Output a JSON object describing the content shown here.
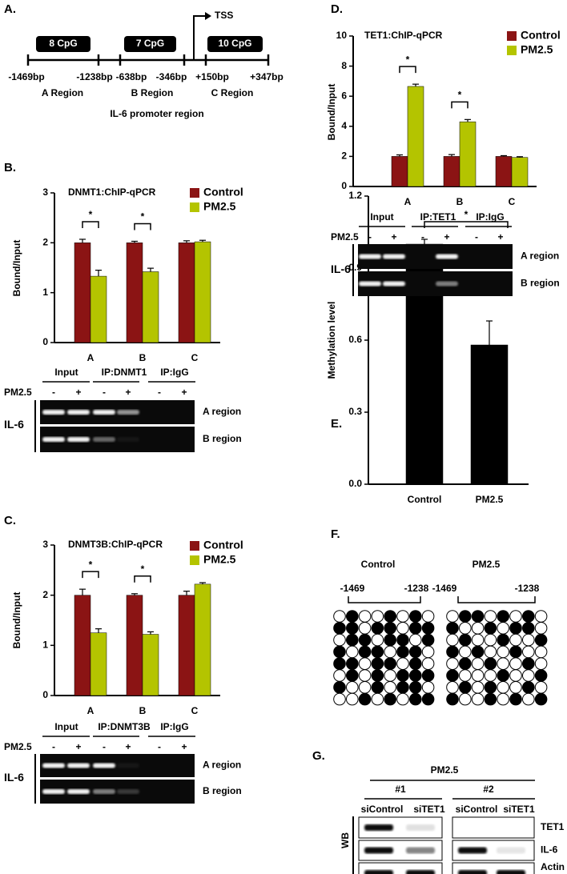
{
  "panel_labels": [
    "A.",
    "B.",
    "C.",
    "D.",
    "E.",
    "F.",
    "G."
  ],
  "panel_a": {
    "cpg_islands": [
      "8 CpG",
      "7 CpG",
      "10 CpG"
    ],
    "tss": "TSS",
    "positions": [
      "-1469bp",
      "-1238bp",
      "-638bp",
      "-346bp",
      "+150bp",
      "+347bp"
    ],
    "regions": [
      "A Region",
      "B Region",
      "C Region"
    ],
    "caption": "IL-6 promoter region"
  },
  "chart_data": [
    {
      "type": "bar",
      "title": "DNMT1:ChIP-qPCR",
      "ylabel": "Bound/Input",
      "categories": [
        "A",
        "B",
        "C"
      ],
      "series": [
        {
          "name": "Control",
          "color": "#8b1414",
          "values": [
            2.0,
            2.0,
            2.0
          ],
          "errors": [
            0.07,
            0.03,
            0.04
          ]
        },
        {
          "name": "PM2.5",
          "color": "#b4c400",
          "values": [
            1.33,
            1.42,
            2.02
          ],
          "errors": [
            0.12,
            0.07,
            0.03
          ]
        }
      ],
      "ylim": [
        0,
        3
      ],
      "yticks": [
        0,
        1,
        2,
        3
      ],
      "annotations": [
        {
          "text": "*",
          "category": "A"
        },
        {
          "text": "*",
          "category": "B"
        }
      ]
    },
    {
      "type": "bar",
      "title": "DNMT3B:ChIP-qPCR",
      "ylabel": "Bound/Input",
      "categories": [
        "A",
        "B",
        "C"
      ],
      "series": [
        {
          "name": "Control",
          "color": "#8b1414",
          "values": [
            2.0,
            2.0,
            2.0
          ],
          "errors": [
            0.12,
            0.03,
            0.08
          ]
        },
        {
          "name": "PM2.5",
          "color": "#b4c400",
          "values": [
            1.25,
            1.22,
            2.22
          ],
          "errors": [
            0.08,
            0.05,
            0.03
          ]
        }
      ],
      "ylim": [
        0,
        3
      ],
      "yticks": [
        0,
        1,
        2,
        3
      ],
      "annotations": [
        {
          "text": "*",
          "category": "A"
        },
        {
          "text": "*",
          "category": "B"
        }
      ]
    },
    {
      "type": "bar",
      "title": "TET1:ChIP-qPCR",
      "ylabel": "Bound/Input",
      "categories": [
        "A",
        "B",
        "C"
      ],
      "series": [
        {
          "name": "Control",
          "color": "#8b1414",
          "values": [
            2.0,
            2.0,
            2.0
          ],
          "errors": [
            0.1,
            0.12,
            0.05
          ]
        },
        {
          "name": "PM2.5",
          "color": "#b4c400",
          "values": [
            6.65,
            4.3,
            1.93
          ],
          "errors": [
            0.15,
            0.15,
            0.05
          ]
        }
      ],
      "ylim": [
        0,
        10
      ],
      "yticks": [
        0,
        2,
        4,
        6,
        8,
        10
      ],
      "annotations": [
        {
          "text": "*",
          "category": "A"
        },
        {
          "text": "*",
          "category": "B"
        }
      ]
    },
    {
      "type": "bar",
      "ylabel": "Methylation level",
      "categories": [
        "Control",
        "PM2.5"
      ],
      "values": [
        1.0,
        0.58
      ],
      "errors": [
        0.02,
        0.1
      ],
      "color": "#000000",
      "ylim": [
        0,
        1.2
      ],
      "yticks": [
        {
          "value": 0,
          "label": "0.0"
        },
        0.3,
        0.6,
        0.9,
        1.2
      ],
      "annotations": [
        {
          "text": "*",
          "from": "Control",
          "to": "PM2.5"
        }
      ]
    }
  ],
  "gels": [
    {
      "columns": [
        "Input",
        "IP:DNMT1",
        "IP:IgG"
      ],
      "treatment": "PM2.5",
      "signs": [
        "-",
        "+",
        "-",
        "+",
        "-",
        "+"
      ],
      "target": "IL-6",
      "rows": [
        "A region",
        "B region"
      ]
    },
    {
      "columns": [
        "Input",
        "IP:DNMT3B",
        "IP:IgG"
      ],
      "treatment": "PM2.5",
      "signs": [
        "-",
        "+",
        "-",
        "+",
        "-",
        "+"
      ],
      "target": "IL-6",
      "rows": [
        "A region",
        "B region"
      ]
    },
    {
      "columns": [
        "Input",
        "IP:TET1",
        "IP:IgG"
      ],
      "treatment": "PM2.5",
      "signs": [
        "-",
        "+",
        "-",
        "+",
        "-",
        "+"
      ],
      "target": "IL-6",
      "rows": [
        "A region",
        "B region"
      ]
    }
  ],
  "panel_f": {
    "groups": [
      {
        "name": "Control",
        "start": "-1469",
        "end": "-1238",
        "rows": [
          [
            0,
            1,
            0,
            0,
            1,
            0,
            1,
            0
          ],
          [
            1,
            1,
            0,
            1,
            1,
            0,
            1,
            1
          ],
          [
            0,
            1,
            1,
            0,
            1,
            1,
            0,
            1
          ],
          [
            1,
            0,
            1,
            1,
            0,
            1,
            1,
            0
          ],
          [
            1,
            1,
            0,
            1,
            1,
            0,
            1,
            0
          ],
          [
            0,
            1,
            0,
            1,
            0,
            1,
            1,
            1
          ],
          [
            1,
            0,
            0,
            1,
            0,
            1,
            1,
            0
          ],
          [
            0,
            0,
            1,
            0,
            1,
            0,
            1,
            1
          ]
        ]
      },
      {
        "name": "PM2.5",
        "start": "-1469",
        "end": "-1238",
        "rows": [
          [
            0,
            1,
            1,
            0,
            1,
            0,
            1,
            0
          ],
          [
            1,
            0,
            0,
            1,
            0,
            1,
            1,
            0
          ],
          [
            0,
            1,
            0,
            0,
            1,
            0,
            0,
            1
          ],
          [
            1,
            0,
            1,
            0,
            0,
            1,
            0,
            0
          ],
          [
            0,
            1,
            0,
            1,
            0,
            0,
            1,
            0
          ],
          [
            1,
            0,
            0,
            0,
            1,
            0,
            0,
            1
          ],
          [
            0,
            1,
            0,
            1,
            0,
            0,
            1,
            0
          ],
          [
            1,
            0,
            0,
            1,
            0,
            1,
            0,
            1
          ]
        ]
      }
    ]
  },
  "panel_g": {
    "treatment": "PM2.5",
    "groups": [
      "#1",
      "#2"
    ],
    "lanes": [
      "siControl",
      "siTET1",
      "siControl",
      "siTET1"
    ],
    "method": "WB",
    "proteins": [
      "TET1",
      "IL-6",
      "Actin"
    ]
  }
}
